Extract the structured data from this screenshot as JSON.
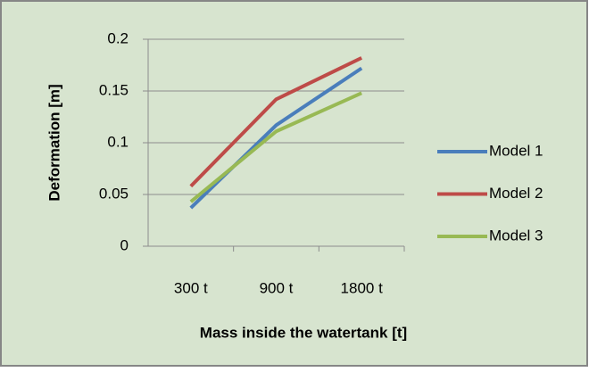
{
  "chart_data": {
    "type": "line",
    "x_label": "Mass inside the watertank [t]",
    "y_label": "Deformation [m]",
    "categories": [
      "300 t",
      "900 t",
      "1800 t"
    ],
    "series": [
      {
        "name": "Model 1",
        "color": "#4a7ebb",
        "values": [
          0.037,
          0.117,
          0.172
        ]
      },
      {
        "name": "Model 2",
        "color": "#be4b48",
        "values": [
          0.058,
          0.142,
          0.182
        ]
      },
      {
        "name": "Model 3",
        "color": "#98b954",
        "values": [
          0.043,
          0.111,
          0.148
        ]
      }
    ],
    "ylim": [
      0,
      0.2
    ],
    "yticks": [
      0,
      0.05,
      0.1,
      0.15,
      0.2
    ],
    "grid": true,
    "legend": "right"
  }
}
